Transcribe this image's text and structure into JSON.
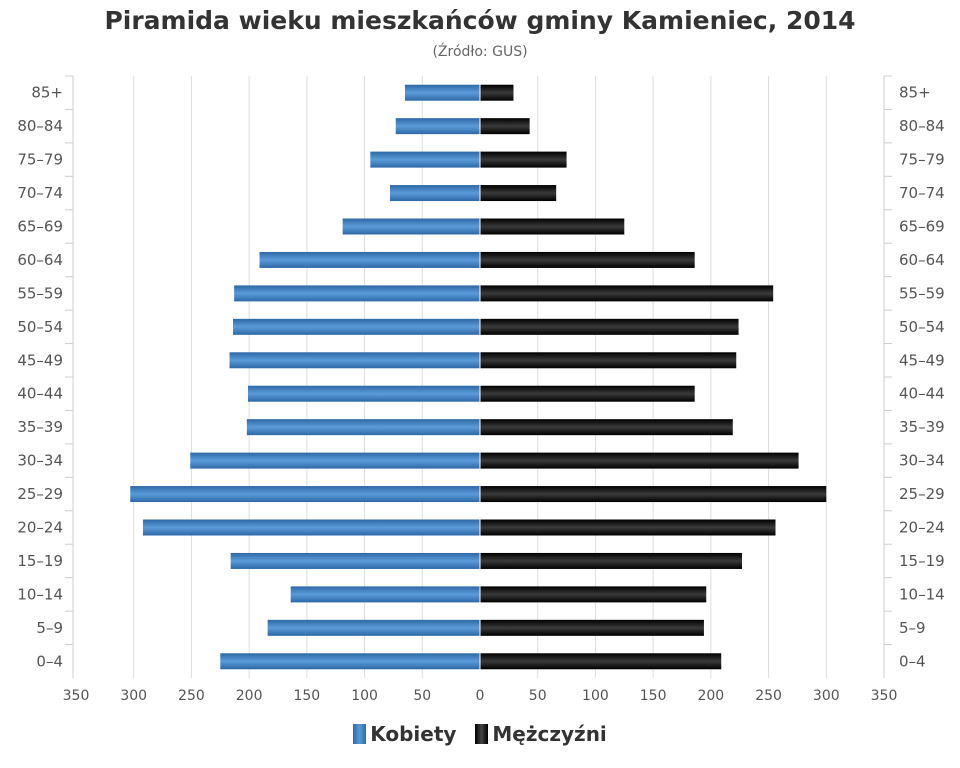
{
  "chart_data": {
    "type": "bar",
    "orientation": "horizontal-pyramid",
    "title": "Piramida wieku mieszkańców gminy Kamieniec, 2014",
    "subtitle": "(Źródło: GUS)",
    "categories": [
      "85+",
      "80-84",
      "75-79",
      "70-74",
      "65-69",
      "60-64",
      "55-59",
      "50-54",
      "45-49",
      "40-44",
      "35-39",
      "30-34",
      "25-29",
      "20-24",
      "15-19",
      "10-14",
      "5-9",
      "0-4"
    ],
    "series": [
      {
        "name": "Kobiety",
        "side": "left",
        "color": "#3a7fc4",
        "values": [
          65,
          73,
          95,
          78,
          119,
          191,
          213,
          214,
          217,
          201,
          202,
          251,
          303,
          292,
          216,
          164,
          184,
          225
        ]
      },
      {
        "name": "Mężczyźni",
        "side": "right",
        "color": "#111111",
        "values": [
          29,
          43,
          75,
          66,
          125,
          186,
          254,
          224,
          222,
          186,
          219,
          276,
          300,
          256,
          227,
          196,
          194,
          209
        ]
      }
    ],
    "xlim": [
      -350,
      350
    ],
    "xticks": [
      "350",
      "300",
      "250",
      "200",
      "150",
      "100",
      "50",
      "0",
      "50",
      "100",
      "150",
      "200",
      "250",
      "300",
      "350"
    ],
    "grid": true,
    "legend": "bottom"
  }
}
